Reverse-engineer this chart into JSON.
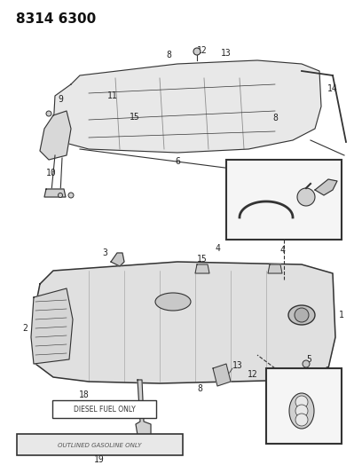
{
  "title": "8314 6300",
  "title_fontsize": 11,
  "title_fontweight": "bold",
  "bg_color": "#ffffff",
  "fig_width": 3.99,
  "fig_height": 5.33,
  "dpi": 100,
  "label_fontsize": 7,
  "label_color": "#222222",
  "line_color": "#333333",
  "line_width": 0.8,
  "diesel_label": "DIESEL FUEL ONLY",
  "gasoline_label": "OUTLINED GASOLINE ONLY",
  "diesel_number": "18",
  "gasoline_number": "19"
}
